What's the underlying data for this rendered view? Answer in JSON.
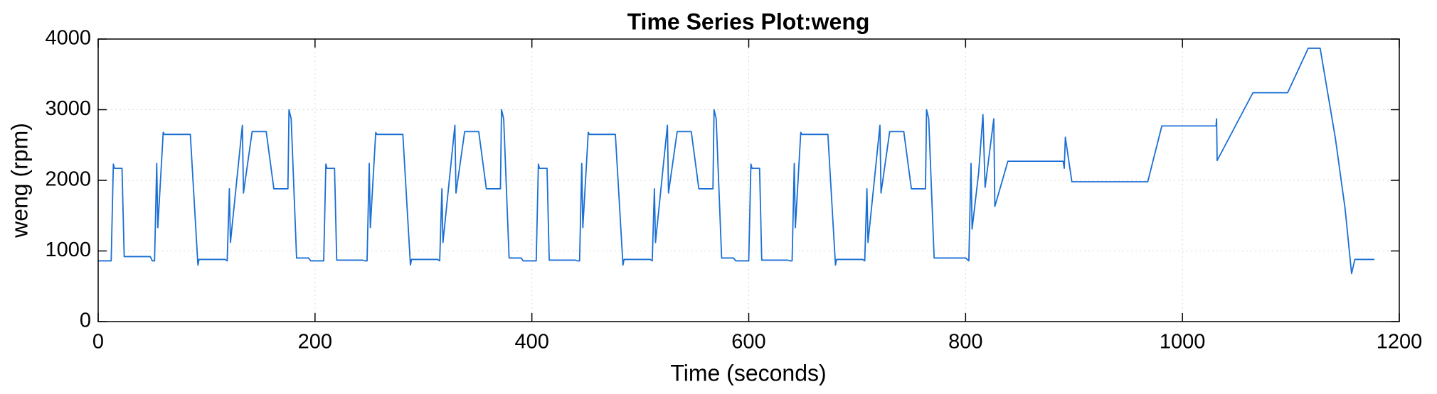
{
  "chart_data": {
    "type": "line",
    "title": "Time Series Plot:weng",
    "x_label": "Time (seconds)",
    "y_label": "weng (rpm)",
    "color": "#1a6fd4",
    "grid": true,
    "xlim": [
      0,
      1200
    ],
    "xticks": [
      0,
      200,
      400,
      600,
      800,
      1000,
      1200
    ],
    "ylim": [
      0,
      4000
    ],
    "yticks": [
      0,
      1000,
      2000,
      3000,
      4000
    ],
    "x": [
      0,
      12,
      14,
      15,
      22,
      24,
      48,
      50,
      52,
      54,
      55,
      60,
      61,
      85,
      92,
      93,
      117,
      119,
      121,
      122,
      133,
      134,
      142,
      155,
      162,
      175,
      176,
      178,
      183,
      194,
      196,
      208,
      210,
      211,
      218,
      220,
      244,
      246,
      248,
      250,
      251,
      256,
      257,
      281,
      288,
      289,
      313,
      315,
      317,
      318,
      329,
      330,
      338,
      351,
      358,
      371,
      372,
      374,
      379,
      390,
      392,
      404,
      406,
      407,
      414,
      416,
      440,
      442,
      444,
      446,
      447,
      452,
      453,
      477,
      484,
      485,
      509,
      511,
      513,
      514,
      525,
      526,
      534,
      547,
      554,
      567,
      568,
      570,
      575,
      586,
      588,
      600,
      602,
      603,
      610,
      612,
      636,
      638,
      640,
      642,
      643,
      648,
      649,
      673,
      680,
      681,
      705,
      707,
      709,
      710,
      721,
      722,
      730,
      743,
      750,
      763,
      764,
      766,
      771,
      782,
      800,
      803,
      805,
      806,
      812,
      816,
      818,
      826,
      827,
      839,
      890,
      891,
      892,
      898,
      968,
      981,
      1031,
      1031.5,
      1032,
      1065,
      1097,
      1116,
      1127,
      1141,
      1150,
      1156,
      1159,
      1177
    ],
    "values": [
      860,
      860,
      2230,
      2170,
      2170,
      920,
      920,
      860,
      860,
      2240,
      1330,
      2680,
      2650,
      2650,
      800,
      880,
      880,
      860,
      1880,
      1120,
      2780,
      1820,
      2690,
      2690,
      1880,
      1880,
      3000,
      2870,
      900,
      900,
      860,
      860,
      2230,
      2170,
      2170,
      870,
      870,
      860,
      860,
      2240,
      1330,
      2680,
      2650,
      2650,
      800,
      880,
      880,
      860,
      1880,
      1120,
      2780,
      1820,
      2690,
      2690,
      1880,
      1880,
      3000,
      2870,
      900,
      900,
      860,
      860,
      2230,
      2170,
      2170,
      870,
      870,
      860,
      860,
      2240,
      1330,
      2680,
      2650,
      2650,
      800,
      880,
      880,
      860,
      1880,
      1120,
      2780,
      1820,
      2690,
      2690,
      1880,
      1880,
      3000,
      2870,
      900,
      900,
      860,
      860,
      2230,
      2170,
      2170,
      870,
      870,
      860,
      860,
      2240,
      1330,
      2680,
      2650,
      2650,
      800,
      880,
      880,
      860,
      1880,
      1120,
      2780,
      1820,
      2690,
      2690,
      1880,
      1880,
      3000,
      2870,
      900,
      900,
      900,
      860,
      2240,
      1310,
      2100,
      2930,
      1900,
      2870,
      1630,
      2270,
      2270,
      2170,
      2610,
      1980,
      1980,
      2770,
      2770,
      2870,
      2280,
      3240,
      3240,
      3870,
      3870,
      2600,
      1600,
      680,
      880,
      880
    ]
  }
}
